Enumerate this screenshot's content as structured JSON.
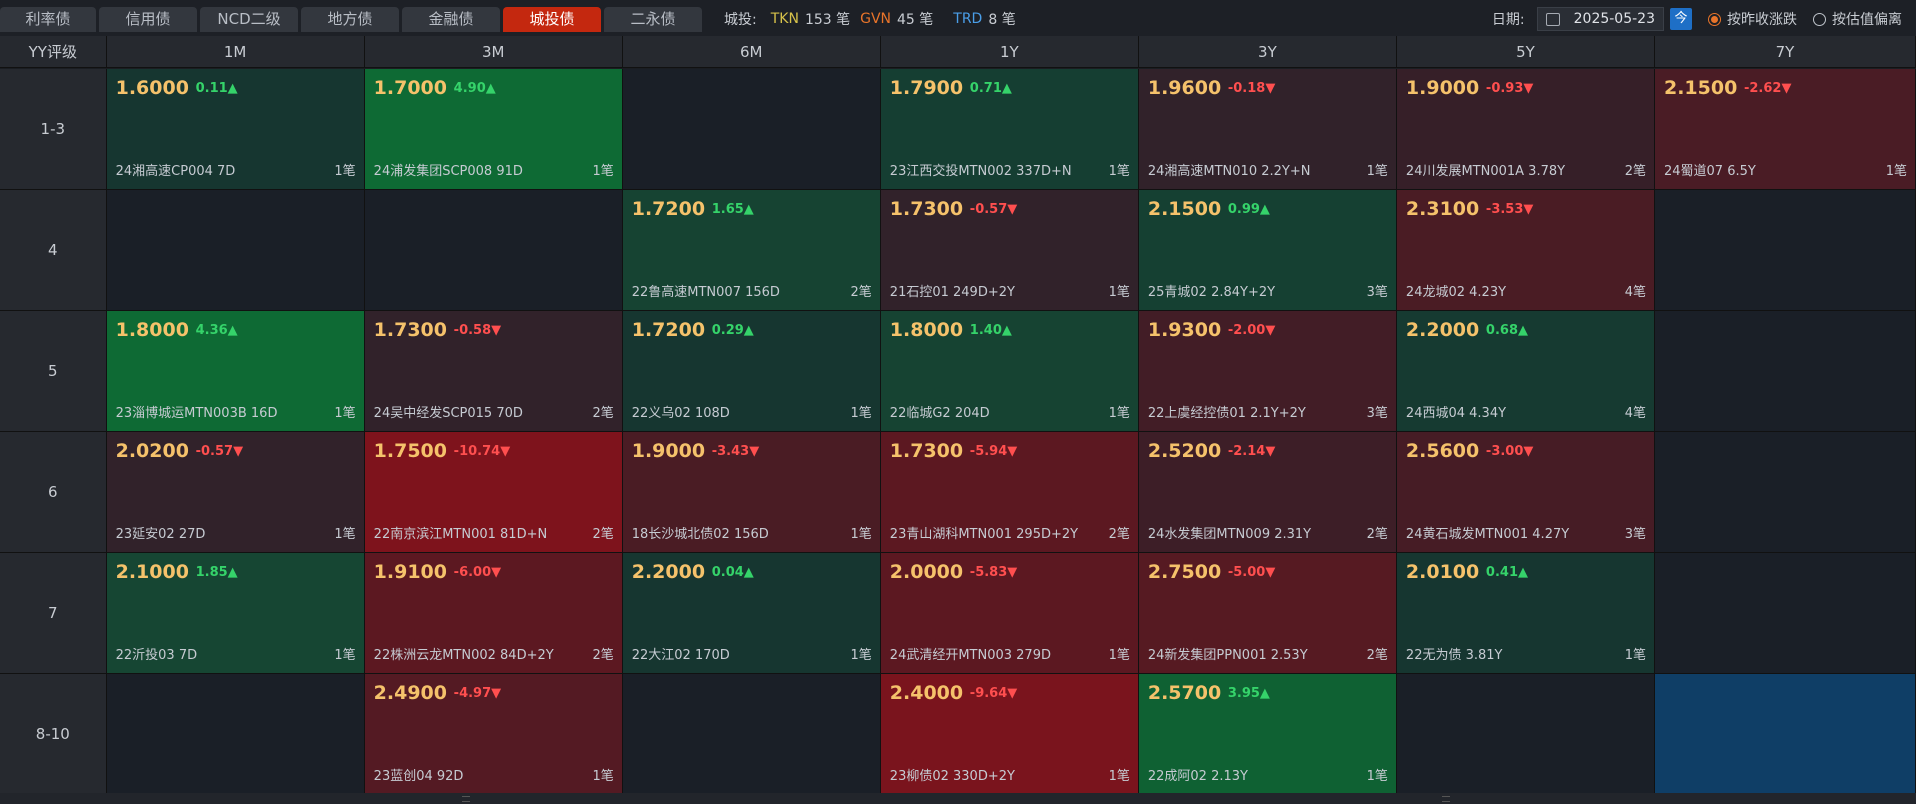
{
  "tabs": [
    {
      "label": "利率债",
      "active": false,
      "w": 96
    },
    {
      "label": "信用债",
      "active": false,
      "w": 98
    },
    {
      "label": "NCD二级",
      "active": false,
      "w": 98
    },
    {
      "label": "地方债",
      "active": false,
      "w": 98
    },
    {
      "label": "金融债",
      "active": false,
      "w": 98
    },
    {
      "label": "城投债",
      "active": true,
      "w": 98
    },
    {
      "label": "二永债",
      "active": false,
      "w": 98
    }
  ],
  "stats": {
    "label": "城投:",
    "tkn_label": "TKN",
    "tkn_value": "153 笔",
    "gvn_label": "GVN",
    "gvn_value": "45 笔",
    "trd_label": "TRD",
    "trd_value": "8 笔",
    "colors": {
      "tkn": "#d7c24a",
      "gvn": "#e8742a",
      "trd": "#4a9ee8"
    }
  },
  "controls": {
    "date_label": "日期:",
    "date_value": "2025-05-23",
    "today_label": "今",
    "radio1": "按昨收涨跌",
    "radio2": "按估值偏离"
  },
  "table": {
    "corner": "YY评级",
    "columns": [
      "1M",
      "3M",
      "6M",
      "1Y",
      "3Y",
      "5Y",
      "7Y"
    ],
    "rows": [
      {
        "label": "1-3",
        "cells": [
          {
            "price": "1.6000",
            "chg": "0.11▲",
            "dir": "up",
            "name": "24湘高速CP004 7D",
            "count": "1笔",
            "bg": "#163630"
          },
          {
            "price": "1.7000",
            "chg": "4.90▲",
            "dir": "up",
            "name": "24浦发集团SCP008 91D",
            "count": "1笔",
            "bg": "#0e6a34"
          },
          {
            "bg": "#1a1f27"
          },
          {
            "price": "1.7900",
            "chg": "0.71▲",
            "dir": "up",
            "name": "23江西交投MTN002 337D+N",
            "count": "1笔",
            "bg": "#153e32"
          },
          {
            "price": "1.9600",
            "chg": "-0.18▼",
            "dir": "dn",
            "name": "24湘高速MTN010 2.2Y+N",
            "count": "1笔",
            "bg": "#31222a"
          },
          {
            "price": "1.9000",
            "chg": "-0.93▼",
            "dir": "dn",
            "name": "24川发展MTN001A 3.78Y",
            "count": "2笔",
            "bg": "#361f28"
          },
          {
            "price": "2.1500",
            "chg": "-2.62▼",
            "dir": "dn",
            "name": "24蜀道07 6.5Y",
            "count": "1笔",
            "bg": "#4a1c25"
          }
        ]
      },
      {
        "label": "4",
        "cells": [
          {
            "bg": "#1a1f27"
          },
          {
            "bg": "#1a1f27"
          },
          {
            "price": "1.7200",
            "chg": "1.65▲",
            "dir": "up",
            "name": "22鲁高速MTN007 156D",
            "count": "2笔",
            "bg": "#164332"
          },
          {
            "price": "1.7300",
            "chg": "-0.57▼",
            "dir": "dn",
            "name": "21石控01 249D+2Y",
            "count": "1笔",
            "bg": "#31222a"
          },
          {
            "price": "2.1500",
            "chg": "0.99▲",
            "dir": "up",
            "name": "25青城02 2.84Y+2Y",
            "count": "3笔",
            "bg": "#154032"
          },
          {
            "price": "2.3100",
            "chg": "-3.53▼",
            "dir": "dn",
            "name": "24龙城02 4.23Y",
            "count": "4笔",
            "bg": "#4a1c24"
          },
          {
            "bg": "#1a1f27"
          }
        ]
      },
      {
        "label": "5",
        "cells": [
          {
            "price": "1.8000",
            "chg": "4.36▲",
            "dir": "up",
            "name": "23淄博城运MTN003B 16D",
            "count": "1笔",
            "bg": "#0e6a34"
          },
          {
            "price": "1.7300",
            "chg": "-0.58▼",
            "dir": "dn",
            "name": "24吴中经发SCP015 70D",
            "count": "2笔",
            "bg": "#31222a"
          },
          {
            "price": "1.7200",
            "chg": "0.29▲",
            "dir": "up",
            "name": "22义乌02 108D",
            "count": "1笔",
            "bg": "#163630"
          },
          {
            "price": "1.8000",
            "chg": "1.40▲",
            "dir": "up",
            "name": "22临城G2 204D",
            "count": "1笔",
            "bg": "#164332"
          },
          {
            "price": "1.9300",
            "chg": "-2.00▼",
            "dir": "dn",
            "name": "22上虞经控债01 2.1Y+2Y",
            "count": "3笔",
            "bg": "#421d26"
          },
          {
            "price": "2.2000",
            "chg": "0.68▲",
            "dir": "up",
            "name": "24西城04 4.34Y",
            "count": "4笔",
            "bg": "#163a31"
          },
          {
            "bg": "#1a1f27"
          }
        ]
      },
      {
        "label": "6",
        "cells": [
          {
            "price": "2.0200",
            "chg": "-0.57▼",
            "dir": "dn",
            "name": "23延安02 27D",
            "count": "1笔",
            "bg": "#31222a"
          },
          {
            "price": "1.7500",
            "chg": "-10.74▼",
            "dir": "dn",
            "name": "22南京滨江MTN001 81D+N",
            "count": "2笔",
            "bg": "#7e131c"
          },
          {
            "price": "1.9000",
            "chg": "-3.43▼",
            "dir": "dn",
            "name": "18长沙城北债02 156D",
            "count": "1笔",
            "bg": "#4a1c24"
          },
          {
            "price": "1.7300",
            "chg": "-5.94▼",
            "dir": "dn",
            "name": "23青山湖科MTN001 295D+2Y",
            "count": "2笔",
            "bg": "#5c1821"
          },
          {
            "price": "2.5200",
            "chg": "-2.14▼",
            "dir": "dn",
            "name": "24水发集团MTN009 2.31Y",
            "count": "2笔",
            "bg": "#3d1e27"
          },
          {
            "price": "2.5600",
            "chg": "-3.00▼",
            "dir": "dn",
            "name": "24黄石城发MTN001 4.27Y",
            "count": "3笔",
            "bg": "#461c25"
          },
          {
            "bg": "#1a1f27"
          }
        ]
      },
      {
        "label": "7",
        "cells": [
          {
            "price": "2.1000",
            "chg": "1.85▲",
            "dir": "up",
            "name": "22沂投03 7D",
            "count": "1笔",
            "bg": "#164633"
          },
          {
            "price": "1.9100",
            "chg": "-6.00▼",
            "dir": "dn",
            "name": "22株洲云龙MTN002 84D+2Y",
            "count": "2笔",
            "bg": "#5c1821"
          },
          {
            "price": "2.2000",
            "chg": "0.04▲",
            "dir": "up",
            "name": "22大江02 170D",
            "count": "1笔",
            "bg": "#163630"
          },
          {
            "price": "2.0000",
            "chg": "-5.83▼",
            "dir": "dn",
            "name": "24武清经开MTN003 279D",
            "count": "1笔",
            "bg": "#5c1821"
          },
          {
            "price": "2.7500",
            "chg": "-5.00▼",
            "dir": "dn",
            "name": "24新发集团PPN001 2.53Y",
            "count": "2笔",
            "bg": "#561a22"
          },
          {
            "price": "2.0100",
            "chg": "0.41▲",
            "dir": "up",
            "name": "22无为债 3.81Y",
            "count": "1笔",
            "bg": "#163630"
          },
          {
            "bg": "#1a1f27"
          }
        ]
      },
      {
        "label": "8-10",
        "cells": [
          {
            "bg": "#1a1f27"
          },
          {
            "price": "2.4900",
            "chg": "-4.97▼",
            "dir": "dn",
            "name": "23蓝创04 92D",
            "count": "1笔",
            "bg": "#541a23"
          },
          {
            "bg": "#1a1f27"
          },
          {
            "price": "2.4000",
            "chg": "-9.64▼",
            "dir": "dn",
            "name": "23柳债02 330D+2Y",
            "count": "1笔",
            "bg": "#7a141d"
          },
          {
            "price": "2.5700",
            "chg": "3.95▲",
            "dir": "up",
            "name": "22成阿02 2.13Y",
            "count": "1笔",
            "bg": "#0f6133"
          },
          {
            "bg": "#1a1f27"
          },
          {
            "bg": "#0f3e66"
          }
        ]
      }
    ]
  }
}
